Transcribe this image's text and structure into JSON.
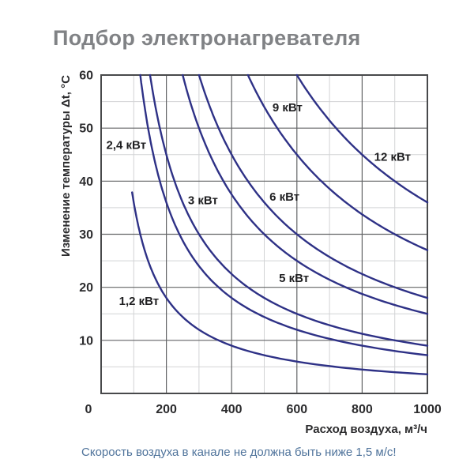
{
  "title": "Подбор электронагревателя",
  "note": "Скорость воздуха в канале не должна быть ниже 1,5 м/с!",
  "colors": {
    "title_text": "#808285",
    "note_text": "#4f739b",
    "curve": "#2e3186",
    "curve_label_text": "#1f1f21",
    "tick_text": "#2b2b2d",
    "axis_label_text": "#2b2b2d",
    "grid_major": "#636466",
    "grid_minor": "#d2d3d5",
    "frame": "#48494b",
    "background": "#ffffff"
  },
  "chart_data": {
    "type": "line",
    "title": "Подбор электронагревателя",
    "xlabel": "Расход воздуха, м³/ч",
    "ylabel": "Изменение температуры Δt, °C",
    "xlim": [
      0,
      1000
    ],
    "ylim": [
      0,
      60
    ],
    "x_ticks": [
      0,
      200,
      400,
      600,
      800,
      1000
    ],
    "y_ticks": [
      10,
      20,
      30,
      40,
      50,
      60
    ],
    "x_major_step": 200,
    "x_minor_step": 100,
    "y_major_step": 10,
    "y_minor_step": 5,
    "grid": true,
    "legend_position": "inline-curve-labels",
    "curve_model": "dt = c / q  (hyperbola, c = 3000 * power_kw)",
    "series": [
      {
        "name": "1,2 кВт",
        "power_kw": 1.2,
        "c": 3600,
        "q_range": [
          95,
          1000
        ],
        "label_at": {
          "q": 116,
          "dt": 17.4
        },
        "points": [
          [
            95,
            37.9
          ],
          [
            120,
            30
          ],
          [
            150,
            24
          ],
          [
            200,
            18
          ],
          [
            250,
            14.4
          ],
          [
            300,
            12
          ],
          [
            400,
            9
          ],
          [
            500,
            7.2
          ],
          [
            600,
            6
          ],
          [
            700,
            5.1
          ],
          [
            800,
            4.5
          ],
          [
            1000,
            3.6
          ]
        ]
      },
      {
        "name": "2,4 кВт",
        "power_kw": 2.4,
        "c": 7200,
        "q_range": [
          120,
          1000
        ],
        "label_at": {
          "q": 77,
          "dt": 46.8
        },
        "points": [
          [
            120,
            60
          ],
          [
            150,
            48
          ],
          [
            200,
            36
          ],
          [
            250,
            28.8
          ],
          [
            300,
            24
          ],
          [
            400,
            18
          ],
          [
            500,
            14.4
          ],
          [
            600,
            12
          ],
          [
            700,
            10.3
          ],
          [
            800,
            9
          ],
          [
            1000,
            7.2
          ]
        ]
      },
      {
        "name": "3 кВт",
        "power_kw": 3,
        "c": 9000,
        "q_range": [
          150,
          1000
        ],
        "label_at": {
          "q": 312,
          "dt": 36.4
        },
        "points": [
          [
            150,
            60
          ],
          [
            200,
            45
          ],
          [
            250,
            36
          ],
          [
            300,
            30
          ],
          [
            400,
            22.5
          ],
          [
            500,
            18
          ],
          [
            600,
            15
          ],
          [
            700,
            12.9
          ],
          [
            800,
            11.3
          ],
          [
            1000,
            9
          ]
        ]
      },
      {
        "name": "5 кВт",
        "power_kw": 5,
        "c": 15000,
        "q_range": [
          250,
          1000
        ],
        "label_at": {
          "q": 591,
          "dt": 21.7
        },
        "points": [
          [
            250,
            60
          ],
          [
            300,
            50
          ],
          [
            400,
            37.5
          ],
          [
            500,
            30
          ],
          [
            600,
            25
          ],
          [
            700,
            21.4
          ],
          [
            800,
            18.8
          ],
          [
            1000,
            15
          ]
        ]
      },
      {
        "name": "6 кВт",
        "power_kw": 6,
        "c": 18000,
        "q_range": [
          300,
          1000
        ],
        "label_at": {
          "q": 562,
          "dt": 37.1
        },
        "points": [
          [
            300,
            60
          ],
          [
            400,
            45
          ],
          [
            500,
            36
          ],
          [
            600,
            30
          ],
          [
            700,
            25.7
          ],
          [
            800,
            22.5
          ],
          [
            1000,
            18
          ]
        ]
      },
      {
        "name": "9 кВт",
        "power_kw": 9,
        "c": 27000,
        "q_range": [
          450,
          1000
        ],
        "label_at": {
          "q": 571,
          "dt": 53.9
        },
        "points": [
          [
            450,
            60
          ],
          [
            500,
            54
          ],
          [
            600,
            45
          ],
          [
            700,
            38.6
          ],
          [
            800,
            33.8
          ],
          [
            900,
            30
          ],
          [
            1000,
            27
          ]
        ]
      },
      {
        "name": "12 кВт",
        "power_kw": 12,
        "c": 36000,
        "q_range": [
          600,
          1000
        ],
        "label_at": {
          "q": 893,
          "dt": 44.6
        },
        "points": [
          [
            600,
            60
          ],
          [
            700,
            51.4
          ],
          [
            800,
            45
          ],
          [
            900,
            40
          ],
          [
            1000,
            36
          ]
        ]
      }
    ]
  }
}
